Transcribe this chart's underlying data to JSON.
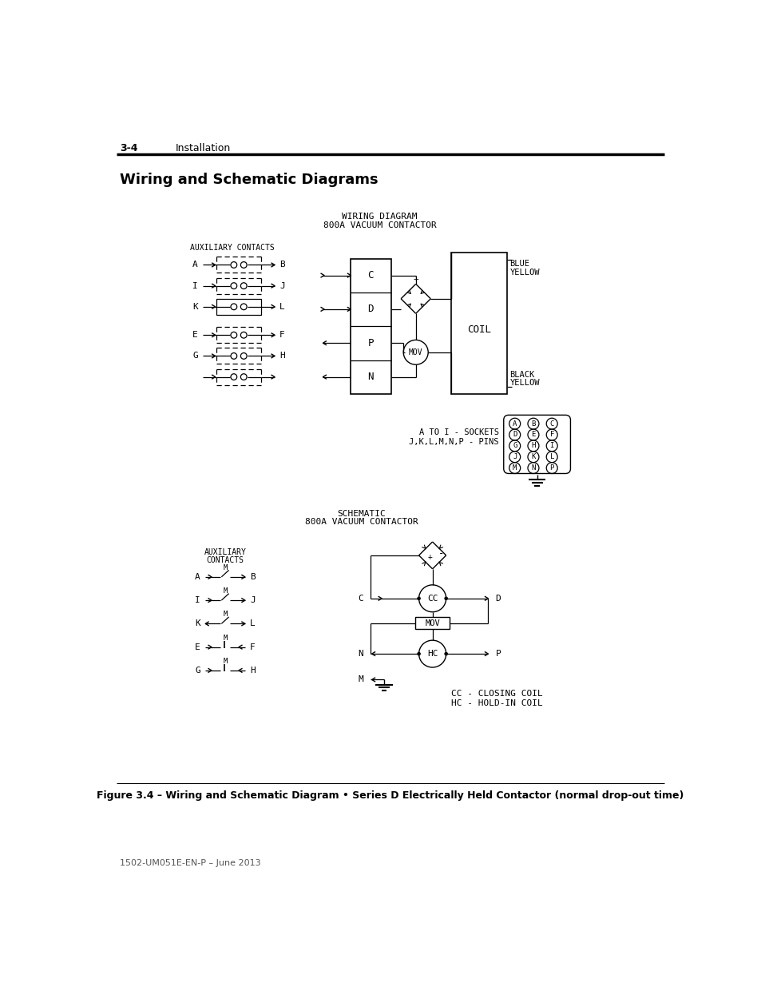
{
  "page_header_left": "3-4",
  "page_header_right": "Installation",
  "section_title": "Wiring and Schematic Diagrams",
  "wiring_title_line1": "WIRING DIAGRAM",
  "wiring_title_line2": "800A VACUUM CONTACTOR",
  "schematic_title_line1": "SCHEMATIC",
  "schematic_title_line2": "800A VACUUM CONTACTOR",
  "figure_caption": "Figure 3.4 – Wiring and Schematic Diagram • Series D Electrically Held Contactor (normal drop-out time)",
  "footer_text": "1502-UM051E-EN-P – June 2013",
  "bg_color": "#ffffff"
}
